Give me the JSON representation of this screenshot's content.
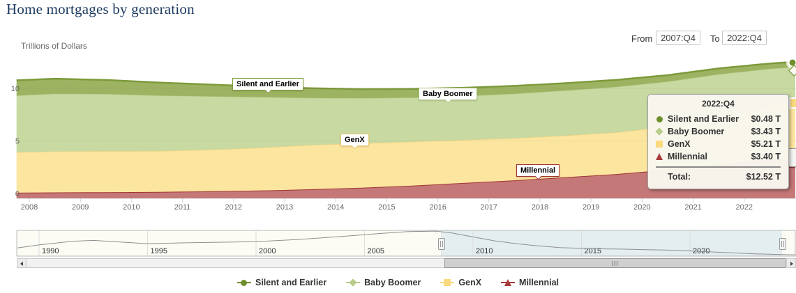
{
  "title": "Home mortgages by generation",
  "axis_title": "Trillions of Dollars",
  "range_selector": {
    "from_label": "From",
    "from_value": "2007:Q4",
    "to_label": "To",
    "to_value": "2022:Q4"
  },
  "tooltip": {
    "header": "2022:Q4",
    "rows": [
      {
        "name": "Silent and Earlier",
        "value": "$0.48 T",
        "marker": "circle",
        "color": "#6f8f2d"
      },
      {
        "name": "Baby Boomer",
        "value": "$3.43 T",
        "marker": "diamond",
        "color": "#b9cc8c"
      },
      {
        "name": "GenX",
        "value": "$5.21 T",
        "marker": "square",
        "color": "#fbd97e"
      },
      {
        "name": "Millennial",
        "value": "$3.40 T",
        "marker": "triangle",
        "color": "#a83c3c"
      }
    ],
    "total_label": "Total:",
    "total_value": "$12.52 T"
  },
  "series_labels": {
    "silent": {
      "text": "Silent and Earlier",
      "border": "#7d9a3b"
    },
    "boomer": {
      "text": "Baby Boomer",
      "border": "#aec77c"
    },
    "genx": {
      "text": "GenX",
      "border": "#eec96a"
    },
    "millennial": {
      "text": "Millennial",
      "border": "#a03537"
    }
  },
  "legend": [
    {
      "label": "Silent and Earlier",
      "marker": "circle",
      "color": "#6f8f2d"
    },
    {
      "label": "Baby Boomer",
      "marker": "diamond",
      "color": "#b9cc8c"
    },
    {
      "label": "GenX",
      "marker": "square",
      "color": "#fbd97e"
    },
    {
      "label": "Millennial",
      "marker": "triangle",
      "color": "#a83c3c"
    }
  ],
  "chart_data": {
    "type": "area",
    "stacked": true,
    "title": "Home mortgages by generation",
    "ylabel": "Trillions of Dollars",
    "ylim": [
      0,
      13
    ],
    "yticks": [
      0,
      5,
      10
    ],
    "xticks": [
      2008,
      2009,
      2010,
      2011,
      2012,
      2013,
      2014,
      2015,
      2016,
      2017,
      2018,
      2019,
      2020,
      2021,
      2022
    ],
    "x_units": "year (fractional years = quarters), range 2007:Q4 to 2022:Q4",
    "x": [
      2007.75,
      2008.5,
      2009.5,
      2010.5,
      2011.5,
      2012.5,
      2013.5,
      2014.5,
      2015.5,
      2016.5,
      2017.5,
      2018.5,
      2019.5,
      2020.5,
      2021.5,
      2022.5,
      2023.0
    ],
    "series": [
      {
        "name": "Silent and Earlier",
        "fill": "#9db362",
        "line": "#7d9a3b",
        "values": [
          1.45,
          1.42,
          1.33,
          1.23,
          1.12,
          1.0,
          0.92,
          0.86,
          0.82,
          0.78,
          0.74,
          0.7,
          0.66,
          0.61,
          0.56,
          0.5,
          0.48
        ]
      },
      {
        "name": "Baby Boomer",
        "fill": "#c8d9a2",
        "line": "#aec77c",
        "values": [
          5.4,
          5.5,
          5.45,
          5.3,
          5.1,
          4.85,
          4.5,
          4.3,
          4.2,
          4.2,
          4.25,
          4.3,
          4.35,
          4.3,
          4.1,
          3.6,
          3.43
        ]
      },
      {
        "name": "GenX",
        "fill": "#fce59f",
        "line": "#f5d37b",
        "values": [
          3.85,
          3.9,
          3.9,
          3.88,
          3.95,
          4.05,
          4.2,
          4.22,
          4.18,
          4.08,
          4.0,
          3.95,
          3.95,
          4.1,
          4.5,
          5.02,
          5.21
        ]
      },
      {
        "name": "Millennial",
        "fill": "#c57878",
        "line": "#a03537",
        "values": [
          0.07,
          0.1,
          0.12,
          0.15,
          0.2,
          0.28,
          0.4,
          0.55,
          0.75,
          1.0,
          1.25,
          1.55,
          1.85,
          2.25,
          2.75,
          3.25,
          3.4
        ]
      }
    ],
    "stack_bottom_to_top": [
      "Millennial",
      "GenX",
      "Baby Boomer",
      "Silent and Earlier"
    ],
    "totals_last_point": 12.52
  },
  "navigator": {
    "labels": [
      "1990",
      "1995",
      "2000",
      "2005",
      "2010",
      "2015",
      "2020"
    ],
    "label_years": [
      1990,
      1995,
      2000,
      2005,
      2010,
      2015,
      2020
    ],
    "line_color": "#8f8f8f",
    "selection_start_year": 2008,
    "selection_end_year": 2023,
    "points": [
      [
        1989.0,
        0.3
      ],
      [
        1990,
        0.42
      ],
      [
        1991.5,
        0.56
      ],
      [
        1992.5,
        0.6
      ],
      [
        1994,
        0.52
      ],
      [
        1995,
        0.47
      ],
      [
        1996.5,
        0.5
      ],
      [
        1998,
        0.52
      ],
      [
        2000,
        0.55
      ],
      [
        2002,
        0.64
      ],
      [
        2004,
        0.76
      ],
      [
        2005.5,
        0.86
      ],
      [
        2007,
        0.95
      ],
      [
        2008.3,
        0.97
      ],
      [
        2009,
        0.9
      ],
      [
        2010,
        0.74
      ],
      [
        2011,
        0.58
      ],
      [
        2012,
        0.47
      ],
      [
        2013,
        0.38
      ],
      [
        2014,
        0.31
      ],
      [
        2015,
        0.28
      ],
      [
        2016,
        0.26
      ],
      [
        2017,
        0.25
      ],
      [
        2018,
        0.23
      ],
      [
        2019,
        0.21
      ],
      [
        2020,
        0.18
      ],
      [
        2021,
        0.14
      ],
      [
        2022,
        0.1
      ],
      [
        2023,
        0.06
      ],
      [
        2024.9,
        0.02
      ]
    ]
  }
}
